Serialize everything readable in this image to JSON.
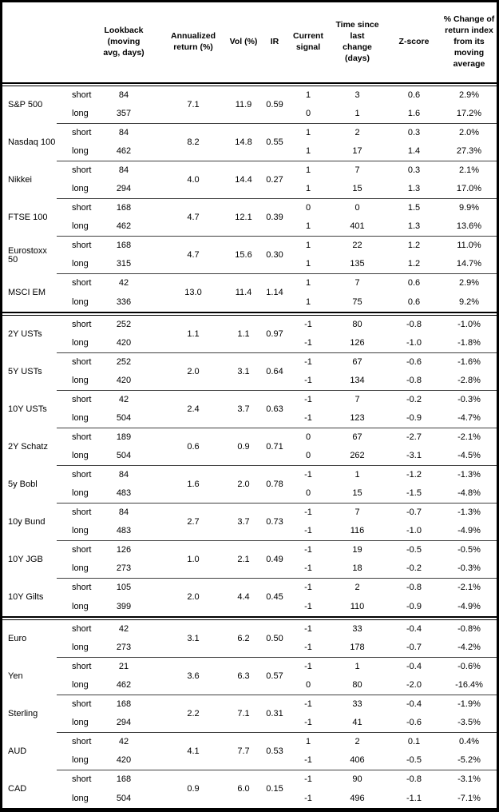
{
  "colors": {
    "background": "#ffffff",
    "text": "#000000",
    "outer_border": "#000000",
    "grid_line": "#3f3f3f"
  },
  "row_labels": {
    "short": "short",
    "long": "long"
  },
  "headers": {
    "lookback": "Lookback\n(moving\navg, days)",
    "annualized": "Annualized\nreturn (%)",
    "vol": "Vol (%)",
    "ir": "IR",
    "signal": "Current\nsignal",
    "time_since": "Time since\nlast change\n(days)",
    "z_score": "Z-score",
    "pct_change": "% Change of\nreturn index\nfrom its\nmoving\naverage"
  },
  "sections": [
    {
      "assets": [
        {
          "name": "S&P 500",
          "ann": "7.1",
          "vol": "11.9",
          "ir": "0.59",
          "short": {
            "lookback": "84",
            "signal": "1",
            "days": "3",
            "z": "0.6",
            "pct": "2.9%"
          },
          "long": {
            "lookback": "357",
            "signal": "0",
            "days": "1",
            "z": "1.6",
            "pct": "17.2%"
          }
        },
        {
          "name": "Nasdaq 100",
          "ann": "8.2",
          "vol": "14.8",
          "ir": "0.55",
          "short": {
            "lookback": "84",
            "signal": "1",
            "days": "2",
            "z": "0.3",
            "pct": "2.0%"
          },
          "long": {
            "lookback": "462",
            "signal": "1",
            "days": "17",
            "z": "1.4",
            "pct": "27.3%"
          }
        },
        {
          "name": "Nikkei",
          "ann": "4.0",
          "vol": "14.4",
          "ir": "0.27",
          "short": {
            "lookback": "84",
            "signal": "1",
            "days": "7",
            "z": "0.3",
            "pct": "2.1%"
          },
          "long": {
            "lookback": "294",
            "signal": "1",
            "days": "15",
            "z": "1.3",
            "pct": "17.0%"
          }
        },
        {
          "name": "FTSE 100",
          "ann": "4.7",
          "vol": "12.1",
          "ir": "0.39",
          "short": {
            "lookback": "168",
            "signal": "0",
            "days": "0",
            "z": "1.5",
            "pct": "9.9%"
          },
          "long": {
            "lookback": "462",
            "signal": "1",
            "days": "401",
            "z": "1.3",
            "pct": "13.6%"
          }
        },
        {
          "name": "Eurostoxx 50",
          "ann": "4.7",
          "vol": "15.6",
          "ir": "0.30",
          "short": {
            "lookback": "168",
            "signal": "1",
            "days": "22",
            "z": "1.2",
            "pct": "11.0%"
          },
          "long": {
            "lookback": "315",
            "signal": "1",
            "days": "135",
            "z": "1.2",
            "pct": "14.7%"
          }
        },
        {
          "name": "MSCI EM",
          "ann": "13.0",
          "vol": "11.4",
          "ir": "1.14",
          "short": {
            "lookback": "42",
            "signal": "1",
            "days": "7",
            "z": "0.6",
            "pct": "2.9%"
          },
          "long": {
            "lookback": "336",
            "signal": "1",
            "days": "75",
            "z": "0.6",
            "pct": "9.2%"
          }
        }
      ]
    },
    {
      "assets": [
        {
          "name": "2Y USTs",
          "ann": "1.1",
          "vol": "1.1",
          "ir": "0.97",
          "short": {
            "lookback": "252",
            "signal": "-1",
            "days": "80",
            "z": "-0.8",
            "pct": "-1.0%"
          },
          "long": {
            "lookback": "420",
            "signal": "-1",
            "days": "126",
            "z": "-1.0",
            "pct": "-1.8%"
          }
        },
        {
          "name": "5Y USTs",
          "ann": "2.0",
          "vol": "3.1",
          "ir": "0.64",
          "short": {
            "lookback": "252",
            "signal": "-1",
            "days": "67",
            "z": "-0.6",
            "pct": "-1.6%"
          },
          "long": {
            "lookback": "420",
            "signal": "-1",
            "days": "134",
            "z": "-0.8",
            "pct": "-2.8%"
          }
        },
        {
          "name": "10Y USTs",
          "ann": "2.4",
          "vol": "3.7",
          "ir": "0.63",
          "short": {
            "lookback": "42",
            "signal": "-1",
            "days": "7",
            "z": "-0.2",
            "pct": "-0.3%"
          },
          "long": {
            "lookback": "504",
            "signal": "-1",
            "days": "123",
            "z": "-0.9",
            "pct": "-4.7%"
          }
        },
        {
          "name": "2Y Schatz",
          "ann": "0.6",
          "vol": "0.9",
          "ir": "0.71",
          "short": {
            "lookback": "189",
            "signal": "0",
            "days": "67",
            "z": "-2.7",
            "pct": "-2.1%"
          },
          "long": {
            "lookback": "504",
            "signal": "0",
            "days": "262",
            "z": "-3.1",
            "pct": "-4.5%"
          }
        },
        {
          "name": "5y Bobl",
          "ann": "1.6",
          "vol": "2.0",
          "ir": "0.78",
          "short": {
            "lookback": "84",
            "signal": "-1",
            "days": "1",
            "z": "-1.2",
            "pct": "-1.3%"
          },
          "long": {
            "lookback": "483",
            "signal": "0",
            "days": "15",
            "z": "-1.5",
            "pct": "-4.8%"
          }
        },
        {
          "name": "10y Bund",
          "ann": "2.7",
          "vol": "3.7",
          "ir": "0.73",
          "short": {
            "lookback": "84",
            "signal": "-1",
            "days": "7",
            "z": "-0.7",
            "pct": "-1.3%"
          },
          "long": {
            "lookback": "483",
            "signal": "-1",
            "days": "116",
            "z": "-1.0",
            "pct": "-4.9%"
          }
        },
        {
          "name": "10Y JGB",
          "ann": "1.0",
          "vol": "2.1",
          "ir": "0.49",
          "short": {
            "lookback": "126",
            "signal": "-1",
            "days": "19",
            "z": "-0.5",
            "pct": "-0.5%"
          },
          "long": {
            "lookback": "273",
            "signal": "-1",
            "days": "18",
            "z": "-0.2",
            "pct": "-0.3%"
          }
        },
        {
          "name": "10Y Gilts",
          "ann": "2.0",
          "vol": "4.4",
          "ir": "0.45",
          "short": {
            "lookback": "105",
            "signal": "-1",
            "days": "2",
            "z": "-0.8",
            "pct": "-2.1%"
          },
          "long": {
            "lookback": "399",
            "signal": "-1",
            "days": "110",
            "z": "-0.9",
            "pct": "-4.9%"
          }
        }
      ]
    },
    {
      "assets": [
        {
          "name": "Euro",
          "ann": "3.1",
          "vol": "6.2",
          "ir": "0.50",
          "short": {
            "lookback": "42",
            "signal": "-1",
            "days": "33",
            "z": "-0.4",
            "pct": "-0.8%"
          },
          "long": {
            "lookback": "273",
            "signal": "-1",
            "days": "178",
            "z": "-0.7",
            "pct": "-4.2%"
          }
        },
        {
          "name": "Yen",
          "ann": "3.6",
          "vol": "6.3",
          "ir": "0.57",
          "short": {
            "lookback": "21",
            "signal": "-1",
            "days": "1",
            "z": "-0.4",
            "pct": "-0.6%"
          },
          "long": {
            "lookback": "462",
            "signal": "0",
            "days": "80",
            "z": "-2.0",
            "pct": "-16.4%"
          }
        },
        {
          "name": "Sterling",
          "ann": "2.2",
          "vol": "7.1",
          "ir": "0.31",
          "short": {
            "lookback": "168",
            "signal": "-1",
            "days": "33",
            "z": "-0.4",
            "pct": "-1.9%"
          },
          "long": {
            "lookback": "294",
            "signal": "-1",
            "days": "41",
            "z": "-0.6",
            "pct": "-3.5%"
          }
        },
        {
          "name": "AUD",
          "ann": "4.1",
          "vol": "7.7",
          "ir": "0.53",
          "short": {
            "lookback": "42",
            "signal": "1",
            "days": "2",
            "z": "0.1",
            "pct": "0.4%"
          },
          "long": {
            "lookback": "420",
            "signal": "-1",
            "days": "406",
            "z": "-0.5",
            "pct": "-5.2%"
          }
        },
        {
          "name": "CAD",
          "ann": "0.9",
          "vol": "6.0",
          "ir": "0.15",
          "short": {
            "lookback": "168",
            "signal": "-1",
            "days": "90",
            "z": "-0.8",
            "pct": "-3.1%"
          },
          "long": {
            "lookback": "504",
            "signal": "-1",
            "days": "496",
            "z": "-1.1",
            "pct": "-7.1%"
          }
        }
      ]
    }
  ]
}
